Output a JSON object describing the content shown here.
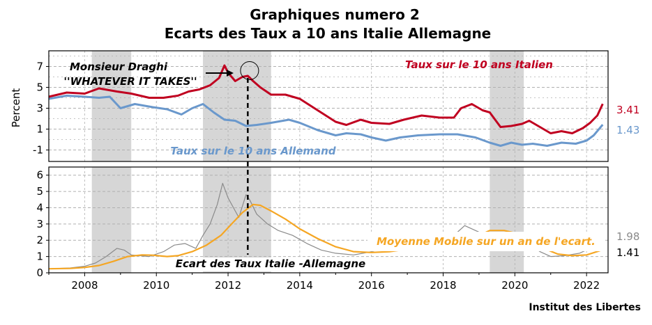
{
  "chart_data": [
    {
      "type": "line",
      "title": "Graphiques numero 2",
      "subtitle": "Ecarts des Taux a 10 ans Italie Allemagne",
      "ylabel": "Percent",
      "xlim": [
        2007.0,
        2022.6
      ],
      "ylim": [
        -2.1,
        8.5
      ],
      "yticks": [
        "-1",
        "1",
        "3",
        "5",
        "7"
      ],
      "grid": true,
      "shaded_periods": [
        [
          2008.2,
          2009.3
        ],
        [
          2011.3,
          2013.2
        ],
        [
          2019.3,
          2020.25
        ]
      ],
      "vertical_marker": 2012.55,
      "circle_marker": {
        "x": 2012.6,
        "y": 6.6
      },
      "series": [
        {
          "name": "Taux sur le 10 ans Italien",
          "color": "#c00020",
          "end_value": "3.41",
          "x": [
            2007.0,
            2007.5,
            2008.0,
            2008.4,
            2008.9,
            2009.3,
            2009.8,
            2010.2,
            2010.6,
            2010.9,
            2011.2,
            2011.5,
            2011.75,
            2011.9,
            2012.0,
            2012.2,
            2012.4,
            2012.55,
            2012.7,
            2012.9,
            2013.2,
            2013.6,
            2014.0,
            2014.5,
            2015.0,
            2015.3,
            2015.7,
            2016.0,
            2016.5,
            2016.9,
            2017.4,
            2017.9,
            2018.3,
            2018.5,
            2018.8,
            2019.1,
            2019.3,
            2019.6,
            2019.9,
            2020.2,
            2020.4,
            2020.7,
            2021.0,
            2021.3,
            2021.6,
            2021.9,
            2022.1,
            2022.3,
            2022.45
          ],
          "y": [
            4.1,
            4.5,
            4.4,
            4.9,
            4.6,
            4.4,
            4.0,
            4.0,
            4.2,
            4.6,
            4.8,
            5.2,
            5.9,
            7.1,
            6.4,
            5.6,
            6.0,
            6.1,
            5.6,
            5.0,
            4.3,
            4.3,
            3.9,
            2.8,
            1.7,
            1.4,
            1.9,
            1.6,
            1.5,
            1.9,
            2.3,
            2.1,
            2.1,
            3.0,
            3.4,
            2.8,
            2.6,
            1.2,
            1.3,
            1.5,
            1.8,
            1.2,
            0.6,
            0.8,
            0.6,
            1.1,
            1.6,
            2.3,
            3.41
          ]
        },
        {
          "name": "Taux sur le 10 ans Allemand",
          "color": "#6a98cc",
          "end_value": "1.43",
          "x": [
            2007.0,
            2007.5,
            2008.0,
            2008.4,
            2008.7,
            2009.0,
            2009.4,
            2009.9,
            2010.3,
            2010.7,
            2011.0,
            2011.3,
            2011.6,
            2011.9,
            2012.2,
            2012.5,
            2012.8,
            2013.2,
            2013.7,
            2014.0,
            2014.5,
            2015.0,
            2015.3,
            2015.7,
            2016.0,
            2016.4,
            2016.8,
            2017.3,
            2017.9,
            2018.4,
            2018.9,
            2019.3,
            2019.6,
            2019.9,
            2020.2,
            2020.5,
            2020.9,
            2021.3,
            2021.7,
            2022.0,
            2022.2,
            2022.45
          ],
          "y": [
            3.9,
            4.2,
            4.1,
            4.0,
            4.1,
            3.0,
            3.4,
            3.1,
            2.9,
            2.4,
            3.0,
            3.4,
            2.6,
            1.9,
            1.8,
            1.3,
            1.4,
            1.6,
            1.9,
            1.6,
            0.9,
            0.4,
            0.6,
            0.5,
            0.2,
            -0.1,
            0.2,
            0.4,
            0.5,
            0.5,
            0.2,
            -0.3,
            -0.6,
            -0.3,
            -0.5,
            -0.4,
            -0.6,
            -0.3,
            -0.4,
            -0.1,
            0.4,
            1.43
          ]
        }
      ]
    },
    {
      "type": "line",
      "xlim": [
        2007.0,
        2022.6
      ],
      "ylim": [
        0,
        6.5
      ],
      "yticks": [
        "0",
        "1",
        "2",
        "3",
        "4",
        "5",
        "6"
      ],
      "xticks": [
        "2008",
        "2010",
        "2012",
        "2014",
        "2016",
        "2018",
        "2020",
        "2022"
      ],
      "grid": true,
      "series": [
        {
          "name": "Ecart des Taux Italie -Allemagne",
          "color": "#8a8a8a",
          "end_value": "1.98",
          "x": [
            2007.0,
            2007.6,
            2008.0,
            2008.3,
            2008.6,
            2008.9,
            2009.1,
            2009.3,
            2009.8,
            2010.2,
            2010.5,
            2010.8,
            2011.1,
            2011.3,
            2011.5,
            2011.7,
            2011.85,
            2012.0,
            2012.15,
            2012.3,
            2012.5,
            2012.6,
            2012.8,
            2013.1,
            2013.4,
            2013.8,
            2014.2,
            2014.6,
            2015.0,
            2015.5,
            2016.0,
            2016.5,
            2017.0,
            2017.5,
            2018.0,
            2018.4,
            2018.6,
            2018.9,
            2019.2,
            2019.5,
            2019.9,
            2020.2,
            2020.4,
            2020.7,
            2021.0,
            2021.4,
            2021.8,
            2022.1,
            2022.45
          ],
          "y": [
            0.25,
            0.3,
            0.4,
            0.6,
            1.0,
            1.5,
            1.4,
            1.1,
            1.0,
            1.3,
            1.7,
            1.8,
            1.5,
            2.3,
            3.0,
            4.2,
            5.5,
            4.6,
            4.0,
            3.4,
            4.8,
            4.5,
            3.6,
            3.0,
            2.6,
            2.3,
            1.8,
            1.4,
            1.2,
            1.1,
            1.3,
            1.6,
            1.8,
            1.6,
            1.4,
            2.5,
            2.9,
            2.6,
            2.3,
            1.8,
            1.6,
            2.2,
            1.8,
            1.3,
            1.0,
            1.05,
            1.2,
            1.5,
            1.98
          ]
        },
        {
          "name": "Moyenne Mobile sur un an de l'ecart.",
          "color": "#f5a623",
          "end_value": "1.41",
          "x": [
            2007.0,
            2007.6,
            2008.0,
            2008.4,
            2008.8,
            2009.2,
            2009.6,
            2009.9,
            2010.3,
            2010.6,
            2011.0,
            2011.4,
            2011.8,
            2012.1,
            2012.4,
            2012.7,
            2012.9,
            2013.2,
            2013.6,
            2014.0,
            2014.5,
            2015.0,
            2015.5,
            2016.0,
            2016.5,
            2017.0,
            2017.5,
            2018.0,
            2018.5,
            2018.9,
            2019.3,
            2019.7,
            2020.0,
            2020.4,
            2020.8,
            2021.2,
            2021.6,
            2022.0,
            2022.45
          ],
          "y": [
            0.25,
            0.27,
            0.33,
            0.45,
            0.7,
            1.0,
            1.1,
            1.08,
            1.0,
            1.05,
            1.3,
            1.7,
            2.3,
            3.0,
            3.7,
            4.2,
            4.15,
            3.8,
            3.3,
            2.7,
            2.1,
            1.6,
            1.3,
            1.25,
            1.3,
            1.45,
            1.6,
            1.55,
            1.65,
            2.2,
            2.6,
            2.6,
            2.45,
            2.0,
            1.5,
            1.15,
            1.05,
            1.1,
            1.41
          ]
        }
      ]
    }
  ],
  "annotations": {
    "draghi_line1": "Monsieur Draghi",
    "draghi_line2": "''WHATEVER IT TAKES''",
    "italy_label": "Taux sur le 10 ans Italien",
    "germany_label": "Taux sur le 10 ans Allemand",
    "spread_label": "Ecart des Taux Italie -Allemagne",
    "ma_label": "Moyenne Mobile sur un an de l'ecart."
  },
  "source": "Institut des Libertes",
  "colors": {
    "shade": "#d6d6d6",
    "grid": "#b0b0b0",
    "frame": "#000000"
  }
}
